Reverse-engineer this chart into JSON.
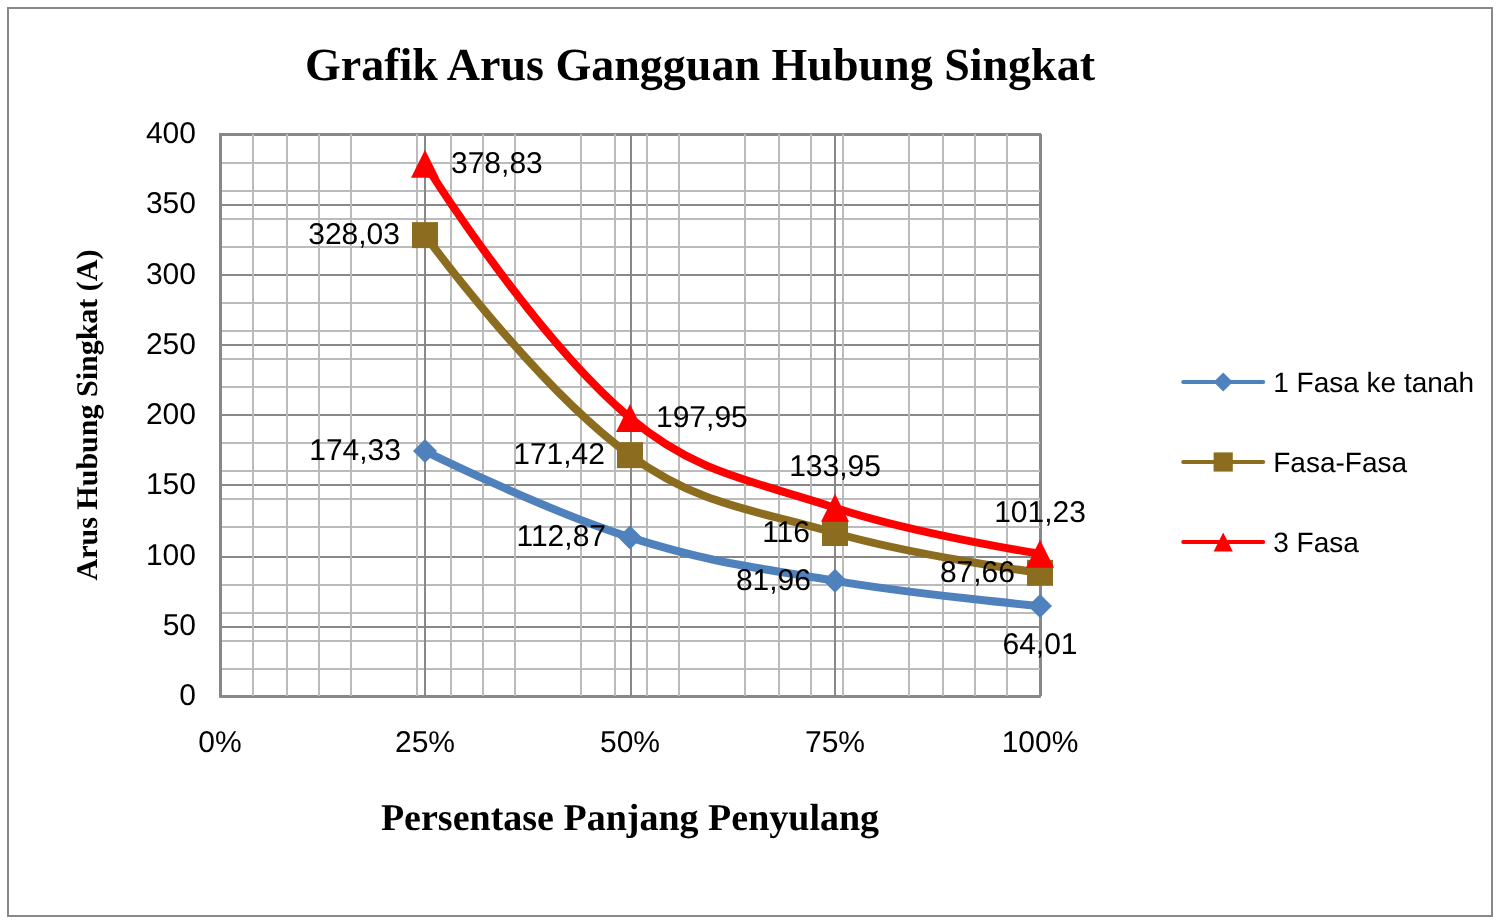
{
  "chart_data": {
    "type": "line",
    "title": "Grafik Arus Gangguan Hubung Singkat",
    "xlabel": "Persentase Panjang Penyulang",
    "ylabel": "Arus Hubung Singkat (A)",
    "x": [
      25,
      50,
      75,
      100
    ],
    "xlim": [
      0,
      100
    ],
    "xticks": [
      {
        "value": 0,
        "label": "0%"
      },
      {
        "value": 25,
        "label": "25%"
      },
      {
        "value": 50,
        "label": "50%"
      },
      {
        "value": 75,
        "label": "75%"
      },
      {
        "value": 100,
        "label": "100%"
      }
    ],
    "ylim": [
      0,
      400
    ],
    "yticks": [
      0,
      50,
      100,
      150,
      200,
      250,
      300,
      350,
      400
    ],
    "series": [
      {
        "name": "1 Fasa ke tanah",
        "color": "#4f81bd",
        "marker": "diamond",
        "values": [
          174.33,
          112.87,
          81.96,
          64.01
        ],
        "value_labels": [
          "174,33",
          "112,87",
          "81,96",
          "64,01"
        ]
      },
      {
        "name": "Fasa-Fasa",
        "color": "#8c6d1f",
        "marker": "square",
        "values": [
          328.03,
          171.42,
          116,
          87.66
        ],
        "value_labels": [
          "328,03",
          "171,42",
          "116",
          "87,66"
        ]
      },
      {
        "name": "3 Fasa",
        "color": "#ff0000",
        "marker": "triangle",
        "values": [
          378.83,
          197.95,
          133.95,
          101.23
        ],
        "value_labels": [
          "378,83",
          "197,95",
          "133,95",
          "101,23"
        ]
      }
    ],
    "grid": true,
    "legend": "right"
  }
}
